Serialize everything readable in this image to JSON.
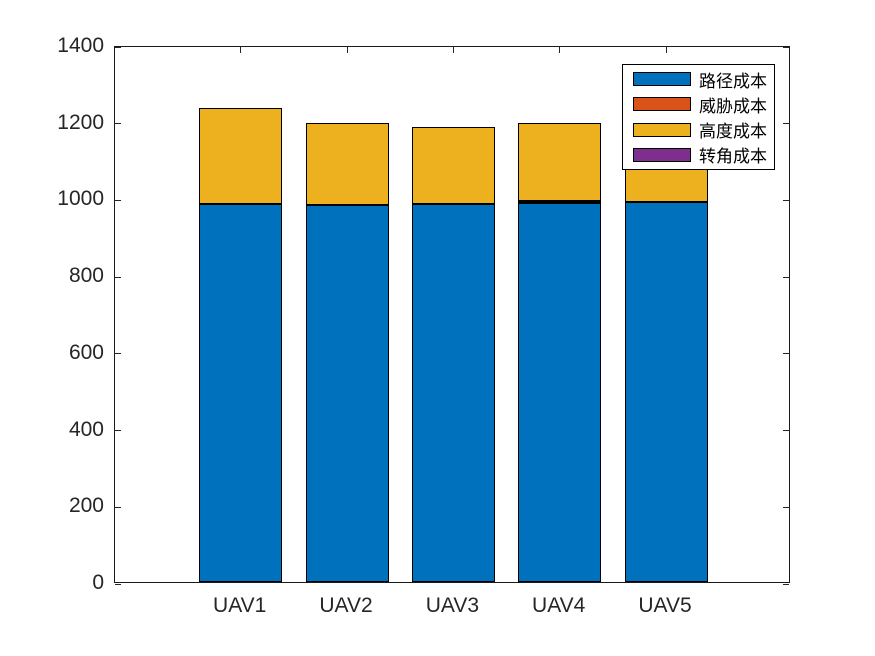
{
  "chart_data": {
    "type": "bar",
    "stacked": true,
    "title": "",
    "xlabel": "",
    "ylabel": "",
    "categories": [
      "UAV1",
      "UAV2",
      "UAV3",
      "UAV4",
      "UAV5"
    ],
    "series": [
      {
        "name": "路径成本",
        "color": "#0072BD",
        "values": [
          985,
          984,
          986,
          987,
          991
        ]
      },
      {
        "name": "威胁成本",
        "color": "#D95319",
        "values": [
          0,
          0,
          0,
          6,
          0
        ]
      },
      {
        "name": "高度成本",
        "color": "#EDB120",
        "values": [
          250,
          214,
          199,
          203,
          215
        ]
      },
      {
        "name": "转角成本",
        "color": "#7E2F8E",
        "values": [
          0,
          0,
          0,
          0,
          0
        ]
      }
    ],
    "totals": [
      1235,
      1198,
      1185,
      1196,
      1206
    ],
    "ylim": [
      0,
      1400
    ],
    "yticks": [
      0,
      200,
      400,
      600,
      800,
      1000,
      1200,
      1400
    ],
    "grid": false,
    "legend_position": "northeast",
    "bar_edge_color": "#000000",
    "axis_color": "#262626",
    "background_color": "#ffffff"
  }
}
